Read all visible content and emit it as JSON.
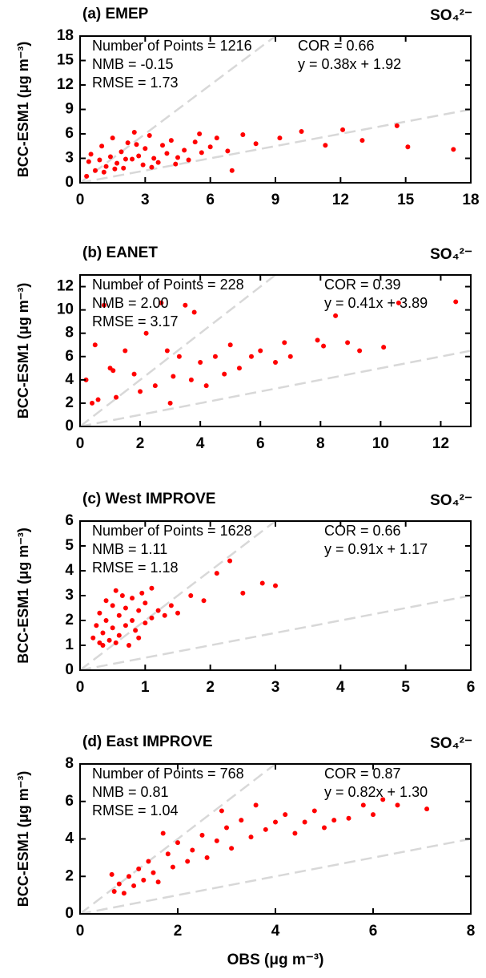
{
  "chart_data": [
    {
      "type": "scatter",
      "title": "(a) EMEP",
      "species": "SO₄²⁻",
      "ylabel": "BCC-ESM1 (μg m⁻³)",
      "color": "#ff0000",
      "xlim": [
        0,
        18
      ],
      "ylim": [
        0,
        18
      ],
      "xticks": [
        0,
        3,
        6,
        9,
        12,
        15,
        18
      ],
      "yticks": [
        0,
        3,
        6,
        9,
        12,
        15,
        18
      ],
      "ref_slopes": [
        2,
        0.5
      ],
      "annotations": [
        "Number of Points = 1216",
        "COR =  0.66",
        "NMB = -0.15",
        "y =  0.38x +  1.92",
        "RMSE =  1.73"
      ],
      "x": [
        0.3,
        0.5,
        0.7,
        0.9,
        1.0,
        1.2,
        1.4,
        1.5,
        1.7,
        1.9,
        2.0,
        2.2,
        2.4,
        2.5,
        2.7,
        2.9,
        3.0,
        3.2,
        3.4,
        3.6,
        3.8,
        4.0,
        4.2,
        4.5,
        4.8,
        5.0,
        5.3,
        5.6,
        6.0,
        6.3,
        6.8,
        7.0,
        7.5,
        8.1,
        9.2,
        10.2,
        11.3,
        12.1,
        13.0,
        14.6,
        15.1,
        17.2,
        0.4,
        1.1,
        2.1,
        3.3,
        4.4,
        5.5,
        1.6,
        2.6
      ],
      "values": [
        0.8,
        3.5,
        1.5,
        2.8,
        4.5,
        2.0,
        3.2,
        5.5,
        2.4,
        3.8,
        1.8,
        4.9,
        2.9,
        6.2,
        3.3,
        2.2,
        4.2,
        5.8,
        3.0,
        2.5,
        4.6,
        3.6,
        5.2,
        3.1,
        4.0,
        2.8,
        5.0,
        3.7,
        4.4,
        5.5,
        3.9,
        1.5,
        5.9,
        4.8,
        5.5,
        6.3,
        4.6,
        6.5,
        5.2,
        7.0,
        4.4,
        4.1,
        2.6,
        1.3,
        2.9,
        1.9,
        2.3,
        6.0,
        1.7,
        4.7
      ]
    },
    {
      "type": "scatter",
      "title": "(b) EANET",
      "species": "SO₄²⁻",
      "ylabel": "BCC-ESM1 (μg m⁻³)",
      "color": "#ff0000",
      "xlim": [
        0,
        13
      ],
      "ylim": [
        0,
        13
      ],
      "xticks": [
        0,
        2,
        4,
        6,
        8,
        10,
        12
      ],
      "yticks": [
        0,
        2,
        4,
        6,
        8,
        10,
        12
      ],
      "ref_slopes": [
        2,
        0.5
      ],
      "annotations": [
        "Number of Points = 228",
        "COR =  0.39",
        "NMB =  2.00",
        "y =  0.41x +  3.89",
        "RMSE =  3.17"
      ],
      "x": [
        0.2,
        0.4,
        0.6,
        0.8,
        1.0,
        1.2,
        1.5,
        1.8,
        2.0,
        2.2,
        2.5,
        2.7,
        3.0,
        3.3,
        3.5,
        3.8,
        3.7,
        4.0,
        4.2,
        4.5,
        4.8,
        5.0,
        5.3,
        5.7,
        6.0,
        6.5,
        6.8,
        7.0,
        7.9,
        8.1,
        8.5,
        8.9,
        9.3,
        10.1,
        10.6,
        12.5,
        0.5,
        1.1,
        2.9,
        3.1
      ],
      "values": [
        4.0,
        2.0,
        2.3,
        10.4,
        5.0,
        2.5,
        6.5,
        4.5,
        3.0,
        8.0,
        3.5,
        10.6,
        2.0,
        6.0,
        10.4,
        9.8,
        4.0,
        5.5,
        3.5,
        6.0,
        4.5,
        7.0,
        5.0,
        6.0,
        6.5,
        5.5,
        7.2,
        6.0,
        7.4,
        6.9,
        9.5,
        7.2,
        6.5,
        6.8,
        10.6,
        10.7,
        7.0,
        4.8,
        6.5,
        4.3
      ]
    },
    {
      "type": "scatter",
      "title": "(c) West IMPROVE",
      "species": "SO₄²⁻",
      "ylabel": "BCC-ESM1 (μg m⁻³)",
      "color": "#ff0000",
      "xlim": [
        0,
        6
      ],
      "ylim": [
        0,
        6
      ],
      "xticks": [
        0,
        1,
        2,
        3,
        4,
        5,
        6
      ],
      "yticks": [
        0,
        1,
        2,
        3,
        4,
        5,
        6
      ],
      "ref_slopes": [
        2,
        0.5
      ],
      "annotations": [
        "Number of Points = 1628",
        "COR =  0.66",
        "NMB =  1.11",
        "y =  0.91x +  1.17",
        "RMSE =  1.18"
      ],
      "x": [
        0.2,
        0.25,
        0.3,
        0.3,
        0.35,
        0.4,
        0.4,
        0.45,
        0.5,
        0.5,
        0.55,
        0.6,
        0.6,
        0.65,
        0.7,
        0.7,
        0.75,
        0.8,
        0.8,
        0.85,
        0.9,
        0.95,
        1.0,
        1.0,
        1.1,
        1.1,
        1.2,
        1.3,
        1.4,
        1.5,
        1.7,
        1.9,
        2.1,
        2.3,
        2.5,
        2.8,
        3.0,
        0.35,
        0.55,
        0.9
      ],
      "values": [
        1.3,
        1.8,
        1.1,
        2.3,
        1.5,
        2.0,
        2.8,
        1.2,
        1.7,
        2.6,
        3.2,
        1.4,
        2.2,
        3.0,
        1.8,
        2.5,
        1.0,
        2.0,
        2.9,
        1.6,
        2.4,
        3.1,
        1.9,
        2.7,
        2.1,
        3.3,
        2.4,
        2.2,
        2.6,
        2.3,
        3.0,
        2.8,
        3.9,
        4.4,
        3.1,
        3.5,
        3.4,
        1.0,
        1.1,
        1.3
      ]
    },
    {
      "type": "scatter",
      "title": "(d) East IMPROVE",
      "species": "SO₄²⁻",
      "ylabel": "BCC-ESM1 (μg m⁻³)",
      "xlabel": "OBS (μg m⁻³)",
      "color": "#ff0000",
      "xlim": [
        0,
        8
      ],
      "ylim": [
        0,
        8
      ],
      "xticks": [
        0,
        2,
        4,
        6,
        8
      ],
      "yticks": [
        0,
        2,
        4,
        6,
        8
      ],
      "ref_slopes": [
        2,
        0.5
      ],
      "annotations": [
        "Number of Points = 768",
        "COR =  0.87",
        "NMB =  0.81",
        "y =  0.82x +  1.30",
        "RMSE =  1.04"
      ],
      "x": [
        0.7,
        0.8,
        0.9,
        1.0,
        1.1,
        1.2,
        1.3,
        1.4,
        1.5,
        1.6,
        1.8,
        1.9,
        2.0,
        2.2,
        2.3,
        2.5,
        2.6,
        2.8,
        3.0,
        3.1,
        3.3,
        3.5,
        3.6,
        3.8,
        4.0,
        4.2,
        4.4,
        4.6,
        4.8,
        5.0,
        5.2,
        5.5,
        5.8,
        6.0,
        6.2,
        6.5,
        7.1,
        0.65,
        1.7,
        2.9
      ],
      "values": [
        1.2,
        1.6,
        1.1,
        2.0,
        1.5,
        2.4,
        1.8,
        2.8,
        2.2,
        1.7,
        3.2,
        2.5,
        3.8,
        2.8,
        3.4,
        4.2,
        3.0,
        3.9,
        4.6,
        3.5,
        5.0,
        4.1,
        5.8,
        4.5,
        4.9,
        5.3,
        4.3,
        4.9,
        5.5,
        4.6,
        5.0,
        5.1,
        5.8,
        5.3,
        6.1,
        5.8,
        5.6,
        2.1,
        4.3,
        5.5
      ]
    }
  ]
}
